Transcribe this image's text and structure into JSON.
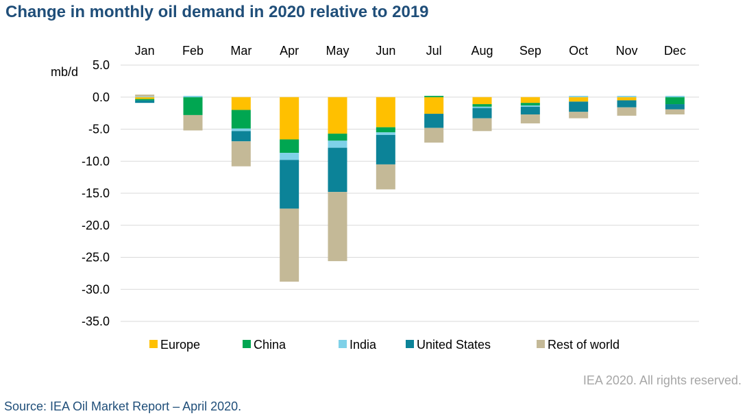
{
  "title": "Change in monthly oil demand in 2020 relative to 2019",
  "copyright": "IEA 2020. All rights reserved.",
  "source": "Source: IEA Oil Market Report – April 2020.",
  "colors": {
    "Europe": "#ffc000",
    "China": "#00a651",
    "India": "#7fd1e8",
    "United States": "#0c8398",
    "Rest of world": "#c4b997",
    "gridline": "#d9d9d9",
    "title": "#1f4e79"
  },
  "chart_data": {
    "type": "bar",
    "stacked": true,
    "ylabel": "mb/d",
    "ylim": [
      -35,
      5
    ],
    "yticks": [
      5,
      0,
      -5,
      -10,
      -15,
      -20,
      -25,
      -30,
      -35
    ],
    "ytick_labels": [
      "5.0",
      "0.0",
      "-5.0",
      "-10.0",
      "-15.0",
      "-20.0",
      "-25.0",
      "-30.0",
      "-35.0"
    ],
    "grid": true,
    "legend_position": "bottom",
    "x_labels_position": "top",
    "categories": [
      "Jan",
      "Feb",
      "Mar",
      "Apr",
      "May",
      "Jun",
      "Jul",
      "Aug",
      "Sep",
      "Oct",
      "Nov",
      "Dec"
    ],
    "series": [
      {
        "name": "Europe",
        "values": [
          -0.3,
          0,
          -2.0,
          -6.6,
          -5.7,
          -4.7,
          -2.6,
          -1.1,
          -0.9,
          -0.7,
          -0.5,
          0
        ]
      },
      {
        "name": "China",
        "values": [
          -0.2,
          -2.8,
          -2.9,
          -2.1,
          -1.1,
          -0.8,
          0.2,
          -0.4,
          -0.4,
          0,
          0,
          -1.1
        ]
      },
      {
        "name": "India",
        "values": [
          0.1,
          0.2,
          -0.4,
          -1.1,
          -1.1,
          -0.4,
          0,
          -0.2,
          -0.2,
          0.2,
          0.2,
          0.2
        ]
      },
      {
        "name": "United States",
        "values": [
          -0.4,
          0,
          -1.6,
          -7.6,
          -6.9,
          -4.6,
          -2.2,
          -1.6,
          -1.2,
          -1.6,
          -1.1,
          -0.8
        ]
      },
      {
        "name": "Rest of world",
        "values": [
          0.3,
          -2.4,
          -3.9,
          -11.4,
          -10.8,
          -3.9,
          -2.3,
          -2.0,
          -1.4,
          -1.0,
          -1.3,
          -0.8
        ]
      }
    ]
  }
}
